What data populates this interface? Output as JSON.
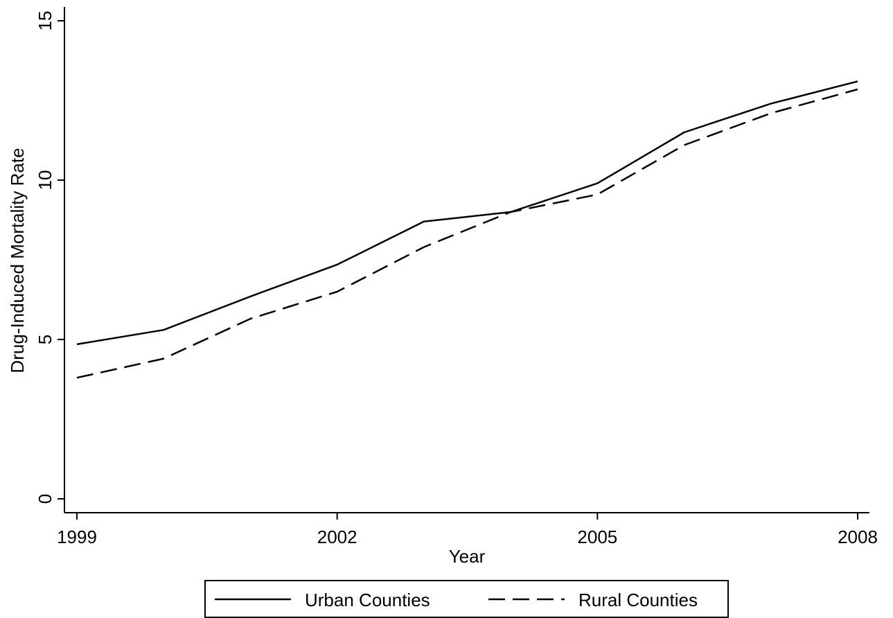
{
  "chart_data": {
    "type": "line",
    "title": "",
    "xlabel": "Year",
    "ylabel": "Drug-Induced Mortality Rate",
    "x": [
      1999,
      2000,
      2001,
      2002,
      2003,
      2004,
      2005,
      2006,
      2007,
      2008
    ],
    "xticks": [
      "1999",
      "2002",
      "2005",
      "2008"
    ],
    "yticks": [
      "0",
      "5",
      "10",
      "15"
    ],
    "xlim": [
      1999,
      2008
    ],
    "ylim": [
      0,
      15
    ],
    "grid": false,
    "legend_position": "bottom",
    "series": [
      {
        "name": "Urban Counties",
        "style": "solid",
        "values": [
          4.85,
          5.3,
          6.35,
          7.35,
          8.7,
          9.0,
          9.9,
          11.5,
          12.4,
          13.1
        ]
      },
      {
        "name": "Rural Counties",
        "style": "dashed",
        "values": [
          3.8,
          4.4,
          5.65,
          6.5,
          7.9,
          9.0,
          9.55,
          11.1,
          12.1,
          12.85
        ]
      }
    ]
  }
}
